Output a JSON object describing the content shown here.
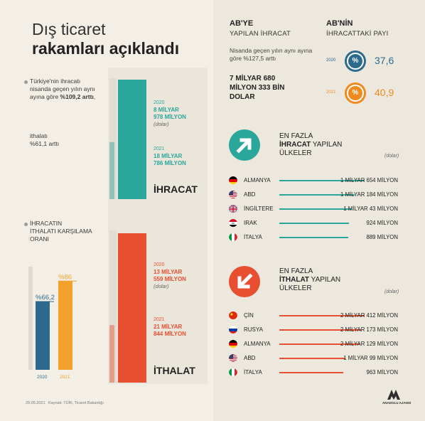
{
  "title": {
    "line1": "Dış ticaret",
    "line2": "rakamları açıklandı"
  },
  "left_note": {
    "text1": "Türkiye'nin ihracatı nisanda geçen yılın aynı ayına göre",
    "value1": "%109,2 arttı",
    "text2": "ithalatı",
    "value2": "%61,1 arttı"
  },
  "ratio": {
    "heading_line1": "İHRACATIN",
    "heading_line2": "İTHALATI KARŞILAMA",
    "heading_line3": "ORANI"
  },
  "export": {
    "label": "İHRACAT",
    "y2020_year": "2020",
    "y2020_l1": "8 MİLYAR",
    "y2020_l2": "978 MİLYON",
    "unit": "(dolar)",
    "y2021_year": "2021",
    "y2021_l1": "18 MİLYAR",
    "y2021_l2": "786 MİLYON"
  },
  "import": {
    "label": "İTHALAT",
    "y2020_year": "2020",
    "y2020_l1": "13 MİLYAR",
    "y2020_l2": "559 MİLYON",
    "unit": "(dolar)",
    "y2021_year": "2021",
    "y2021_l1": "21 MİLYAR",
    "y2021_l2": "844 MİLYON"
  },
  "abye": {
    "head": "AB'YE",
    "sub": "YAPILAN İHRACAT",
    "note": "Nisanda geçen yılın aynı ayına göre %127,5 arttı",
    "big1": "7 MİLYAR 680",
    "big2": "MİLYON 333 BİN",
    "big3": "DOLAR"
  },
  "abnin": {
    "head": "AB'NİN",
    "sub": "İHRACATTAKİ PAYI",
    "pct_symbol": "%",
    "y2020": "2020",
    "v2020": "37,6",
    "y2021": "2021",
    "v2021": "40,9"
  },
  "top_export": {
    "l1": "EN FAZLA",
    "l2": "İHRACAT",
    "l3": "YAPILAN",
    "l4": "ÜLKELER",
    "unit": "(dolar)",
    "color": "#2ba69a"
  },
  "top_import": {
    "l1": "EN FAZLA",
    "l2": "İTHALAT",
    "l3": "YAPILAN",
    "l4": "ÜLKELER",
    "unit": "(dolar)",
    "color": "#e84f31"
  },
  "chart_data": [
    {
      "type": "bar",
      "title": "",
      "categories": [
        "2020",
        "2021"
      ],
      "series": [
        {
          "name": "İHRACAT",
          "values": [
            8978,
            18786
          ],
          "color": "#2ba69a"
        },
        {
          "name": "İTHALAT",
          "values": [
            13559,
            21844
          ],
          "color": "#e84f31"
        }
      ],
      "ylabel": "",
      "value_unit": "milyon dolar"
    },
    {
      "type": "bar",
      "title": "",
      "categories": [
        "2020",
        "2021"
      ],
      "values": [
        66.2,
        86
      ],
      "value_labels": [
        "%66,2",
        "%86"
      ],
      "colors": [
        "#2e6a8e",
        "#f3a12b"
      ],
      "ylim": [
        0,
        100
      ],
      "ylabel": ""
    },
    {
      "type": "bar",
      "orientation": "horizontal",
      "title": "",
      "categories": [
        "ALMANYA",
        "ABD",
        "İNGİLTERE",
        "IRAK",
        "İTALYA"
      ],
      "values": [
        1654,
        1184,
        1043,
        924,
        889
      ],
      "value_labels": [
        "1 MİLYAR 654 MİLYON",
        "1 MİLYAR 184 MİLYON",
        "1 MİLYAR 43 MİLYON",
        "924 MİLYON",
        "889 MİLYON"
      ],
      "flags": [
        "flag-de-icon",
        "flag-us-icon",
        "flag-gb-icon",
        "flag-iq-icon",
        "flag-it-icon"
      ]
    },
    {
      "type": "bar",
      "orientation": "horizontal",
      "title": "",
      "categories": [
        "ÇİN",
        "RUSYA",
        "ALMANYA",
        "ABD",
        "İTALYA"
      ],
      "values": [
        2412,
        2173,
        2129,
        1099,
        963
      ],
      "value_labels": [
        "2 MİLYAR 412 MİLYON",
        "2 MİLYAR 173 MİLYON",
        "2 MİLYAR 129 MİLYON",
        "1 MİLYAR 99 MİLYON",
        "963 MİLYON"
      ],
      "flags": [
        "flag-cn-icon",
        "flag-ru-icon",
        "flag-de-icon",
        "flag-us-icon",
        "flag-it-icon"
      ]
    }
  ],
  "footer": {
    "date": "29.05.2021",
    "source": "Kaynak: TÜİK, Ticaret Bakanlığı",
    "logo": "ANADOLU AJANSI",
    "logo_mark": "AA"
  }
}
